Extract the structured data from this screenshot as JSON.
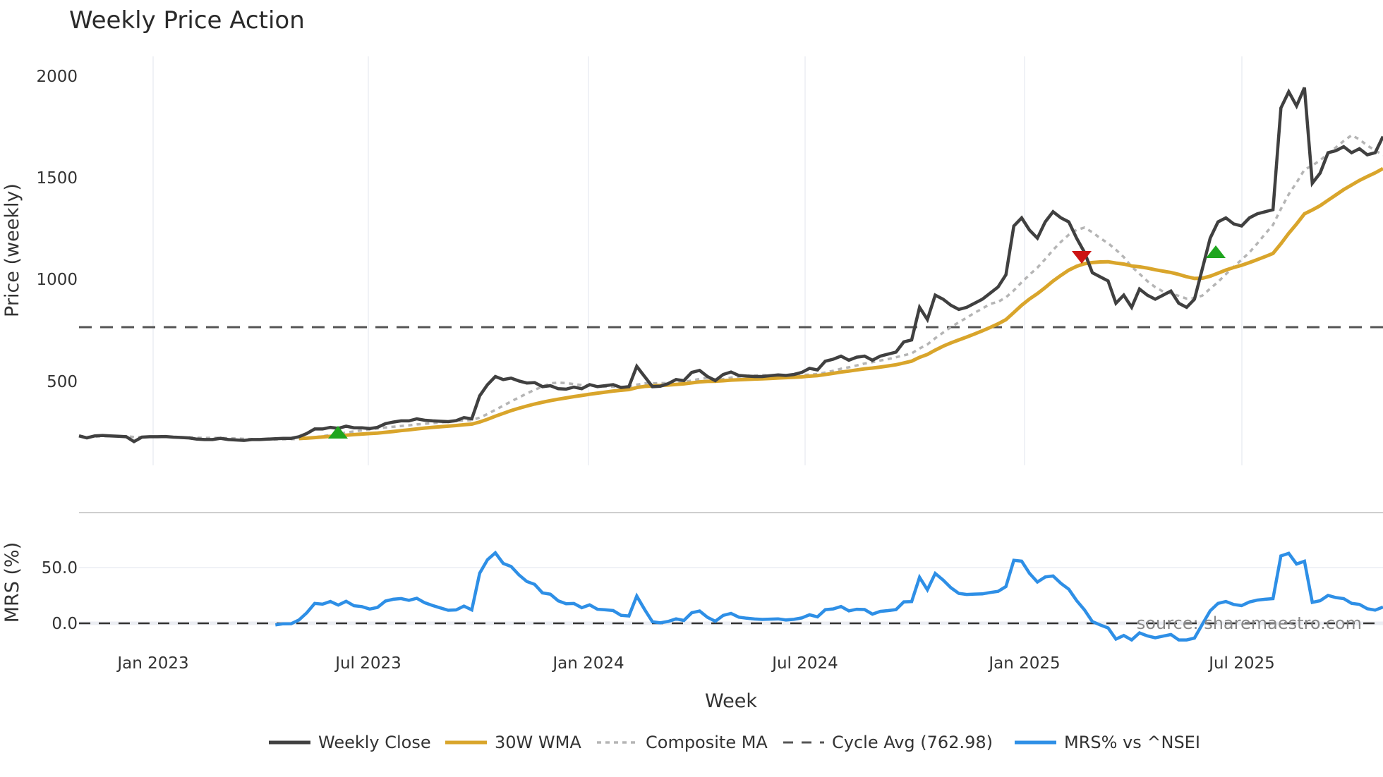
{
  "chart_data": {
    "type": "line",
    "title": "Weekly Price Action",
    "xlabel": "Week",
    "panels": [
      {
        "name": "price",
        "ylabel": "Price (weekly)",
        "yticks": [
          500,
          1000,
          1500,
          2000
        ],
        "ylim": [
          100,
          2070
        ]
      },
      {
        "name": "mrs",
        "ylabel": "MRS (%)",
        "yticks": [
          "0.0",
          "50.0"
        ],
        "ylim": [
          -20,
          98
        ]
      }
    ],
    "xticks": [
      "Jan 2023",
      "Jul 2023",
      "Jan 2024",
      "Jul 2024",
      "Jan 2025",
      "Jul 2025"
    ],
    "x_start": "2022-11-04",
    "x_freq": "weekly",
    "series": [
      {
        "name": "Weekly Close",
        "color": "#404040",
        "values": [
          228,
          218,
          228,
          230,
          228,
          226,
          224,
          200,
          222,
          224,
          224,
          225,
          222,
          220,
          218,
          212,
          210,
          210,
          216,
          210,
          208,
          206,
          210,
          210,
          212,
          214,
          216,
          216,
          224,
          240,
          262,
          262,
          270,
          265,
          276,
          268,
          268,
          264,
          270,
          288,
          296,
          302,
          302,
          312,
          305,
          302,
          300,
          298,
          303,
          318,
          312,
          425,
          480,
          520,
          505,
          512,
          498,
          488,
          490,
          470,
          475,
          460,
          458,
          468,
          460,
          480,
          470,
          475,
          480,
          466,
          470,
          570,
          520,
          470,
          472,
          485,
          505,
          500,
          540,
          550,
          520,
          500,
          530,
          542,
          525,
          522,
          520,
          520,
          524,
          528,
          525,
          530,
          540,
          560,
          552,
          595,
          605,
          620,
          600,
          615,
          620,
          600,
          620,
          630,
          640,
          690,
          700,
          860,
          800,
          920,
          900,
          870,
          850,
          860,
          880,
          900,
          930,
          960,
          1020,
          1260,
          1300,
          1240,
          1200,
          1280,
          1330,
          1300,
          1280,
          1200,
          1130,
          1030,
          1010,
          990,
          880,
          920,
          860,
          950,
          920,
          900,
          920,
          940,
          880,
          860,
          900,
          1050,
          1200,
          1280,
          1300,
          1270,
          1260,
          1300,
          1320,
          1330,
          1340,
          1840,
          1920,
          1850,
          1940,
          1470,
          1520,
          1620,
          1630,
          1650,
          1620,
          1640,
          1610,
          1620,
          1700
        ]
      },
      {
        "name": "30W WMA",
        "color": "#D9A52B"
      },
      {
        "name": "Composite MA",
        "color": "#B5B5B5"
      },
      {
        "name": "Cycle Avg (762.98)",
        "color": "#555555",
        "value": 762.98
      },
      {
        "name": "MRS% vs ^NSEI",
        "color": "#2E8FE6"
      }
    ],
    "markers": [
      {
        "type": "buy",
        "shape": "triangle-up",
        "color": "#1FA51F",
        "date": "~Jun 2023",
        "price": 245
      },
      {
        "type": "sell",
        "shape": "triangle-down",
        "color": "#CC1414",
        "date": "~Mar 2025",
        "price": 1120
      },
      {
        "type": "buy",
        "shape": "triangle-up",
        "color": "#1FA51F",
        "date": "~Jun 2025",
        "price": 1130
      }
    ],
    "legend_position": "bottom",
    "grid": true
  },
  "legend": {
    "items": [
      {
        "label": "Weekly Close"
      },
      {
        "label": "30W WMA"
      },
      {
        "label": "Composite MA"
      },
      {
        "label": "Cycle Avg (762.98)"
      },
      {
        "label": "MRS% vs ^NSEI"
      }
    ]
  },
  "labels": {
    "title": "Weekly Price Action",
    "ylabel_price": "Price (weekly)",
    "ylabel_mrs": "MRS (%)",
    "xlabel": "Week",
    "source": "source: sharemaestro.com",
    "yticks_price": [
      "2000",
      "1500",
      "1000",
      "500"
    ],
    "yticks_mrs": [
      "50.0",
      "0.0"
    ],
    "xticks": [
      "Jan 2023",
      "Jul 2023",
      "Jan 2024",
      "Jul 2024",
      "Jan 2025",
      "Jul 2025"
    ]
  }
}
